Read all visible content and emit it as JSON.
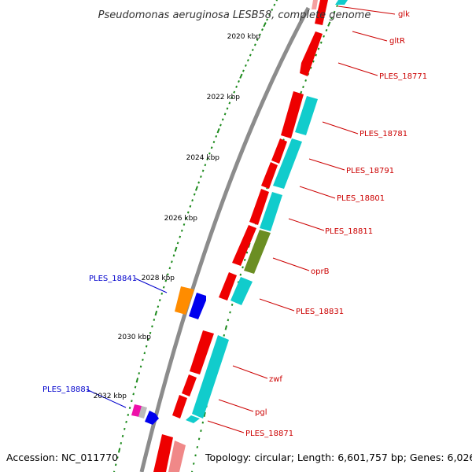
{
  "title": "Pseudomonas aeruginosa LESB58, complete genome",
  "footer": {
    "accession": "Accession: NC_011770",
    "summary": "Topology: circular; Length: 6,601,757 bp; Genes: 6,026"
  },
  "colors": {
    "backbone": "#8c8c8c",
    "tick": "#1c8a1c",
    "forward_gene": "#ee0000",
    "reverse_gene": "#11cccc",
    "trna_like": "#6b8e23",
    "outer_label": "#cc0000",
    "inner_label": "#0000cc"
  },
  "kbp_labels": [
    "2020 kbp",
    "2022 kbp",
    "2024 kbp",
    "2026 kbp",
    "2028 kbp",
    "2030 kbp",
    "2032 kbp"
  ],
  "outer_gene_labels": [
    "glk",
    "gltR",
    "PLES_18771",
    "PLES_18781",
    "PLES_18791",
    "PLES_18801",
    "PLES_18811",
    "oprB",
    "PLES_18831",
    "zwf",
    "pgl",
    "PLES_18871"
  ],
  "inner_gene_labels": [
    "PLES_18841",
    "PLES_18881"
  ]
}
